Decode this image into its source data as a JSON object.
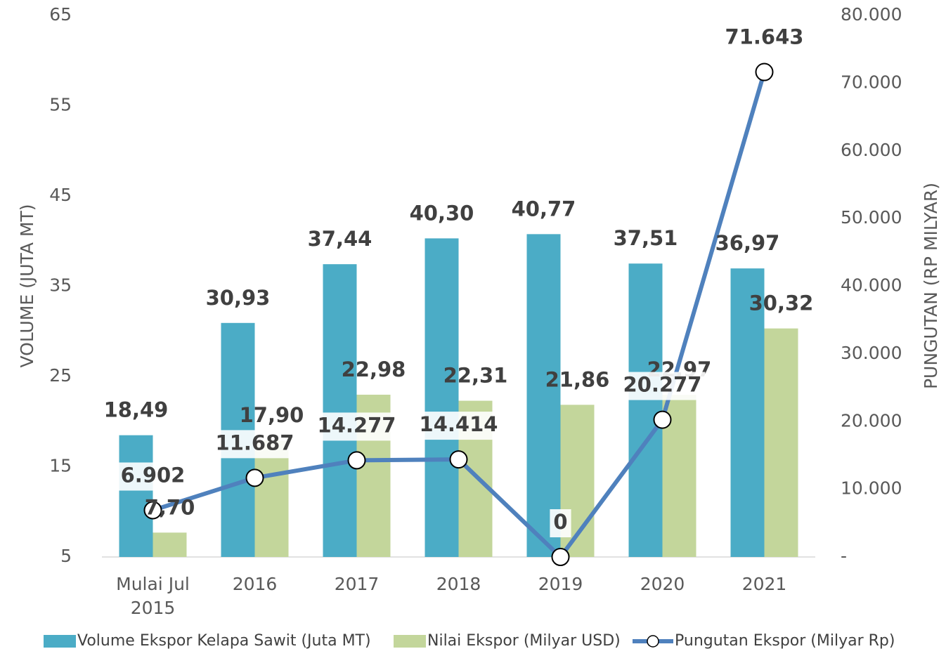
{
  "chart_data": {
    "type": "bar_line",
    "categories": [
      "Mulai Jul 2015",
      "2016",
      "2017",
      "2018",
      "2019",
      "2020",
      "2021"
    ],
    "series": [
      {
        "name": "Volume Ekspor Kelapa Sawit (Juta MT)",
        "type": "bar",
        "color": "#4bacc6",
        "values": [
          18.49,
          30.93,
          37.44,
          40.3,
          40.77,
          37.51,
          36.97
        ],
        "value_labels": [
          "18,49",
          "30,93",
          "37,44",
          "40,30",
          "40,77",
          "37,51",
          "36,97"
        ]
      },
      {
        "name": "Nilai Ekspor (Milyar USD)",
        "type": "bar",
        "color": "#c3d69b",
        "values": [
          7.7,
          17.9,
          22.98,
          22.31,
          21.86,
          22.97,
          30.32
        ],
        "value_labels": [
          "7,70",
          "17,90",
          "22,98",
          "22,31",
          "21,86",
          "22,97",
          "30,32"
        ]
      },
      {
        "name": "Pungutan Ekspor (Milyar Rp)",
        "type": "line",
        "axis": "y2",
        "color": "#4f81bd",
        "values": [
          6902,
          11687,
          14277,
          14414,
          0,
          20277,
          71643
        ],
        "value_labels": [
          "6.902",
          "11.687",
          "14.277",
          "14.414",
          "0",
          "20.277",
          "71.643"
        ]
      }
    ],
    "ylabel": "VOLUME (JUTA MT)",
    "y2label": "PUNGUTAN (RP MILYAR)",
    "ylim": [
      5,
      65
    ],
    "yticks": [
      5,
      15,
      25,
      35,
      45,
      55,
      65
    ],
    "y2lim": [
      0,
      80000
    ],
    "y2ticks": [
      {
        "value": 0,
        "label": "-"
      },
      {
        "value": 10000,
        "label": "10.000"
      },
      {
        "value": 20000,
        "label": "20.000"
      },
      {
        "value": 30000,
        "label": "30.000"
      },
      {
        "value": 40000,
        "label": "40.000"
      },
      {
        "value": 50000,
        "label": "50.000"
      },
      {
        "value": 60000,
        "label": "60.000"
      },
      {
        "value": 70000,
        "label": "70.000"
      },
      {
        "value": 80000,
        "label": "80.000"
      }
    ],
    "grid": false,
    "legend": "bottom"
  }
}
